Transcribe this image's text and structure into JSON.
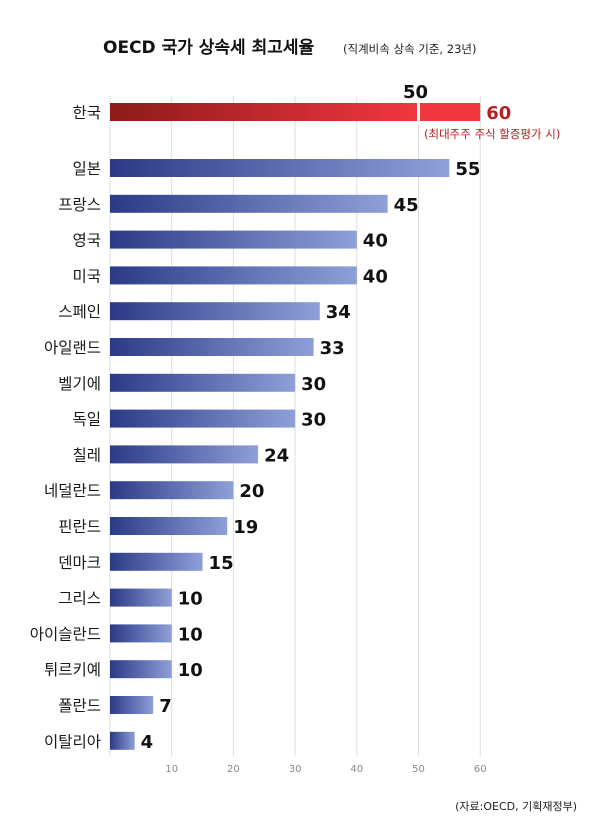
{
  "title": "OECD 국가 상속세 최고세율",
  "subtitle": "(직계비속 상속 기준, 23년)",
  "source": "(자료:OECD, 기획재정부)",
  "colors": {
    "bar_start": "#2b3a86",
    "bar_end": "#8f9fd8",
    "highlight_start": "#8e1a1a",
    "highlight_end": "#f0373e",
    "highlight_text": "#b32025"
  },
  "chart_data": {
    "type": "bar",
    "orientation": "horizontal",
    "categories": [
      "한국",
      "일본",
      "프랑스",
      "영국",
      "미국",
      "스페인",
      "아일랜드",
      "벨기에",
      "독일",
      "칠레",
      "네덜란드",
      "핀란드",
      "덴마크",
      "그리스",
      "아이슬란드",
      "튀르키예",
      "폴란드",
      "이탈리아"
    ],
    "values": [
      50,
      55,
      45,
      40,
      40,
      34,
      33,
      30,
      30,
      24,
      20,
      19,
      15,
      10,
      10,
      10,
      7,
      4
    ],
    "highlight": {
      "category": "한국",
      "extended_value": 60,
      "note": "(최대주주 주식 할증평가 시)"
    },
    "xticks": [
      10,
      20,
      30,
      40,
      50,
      60
    ],
    "xlim": [
      0,
      60
    ],
    "xlabel": "",
    "ylabel": "",
    "grid": true
  }
}
